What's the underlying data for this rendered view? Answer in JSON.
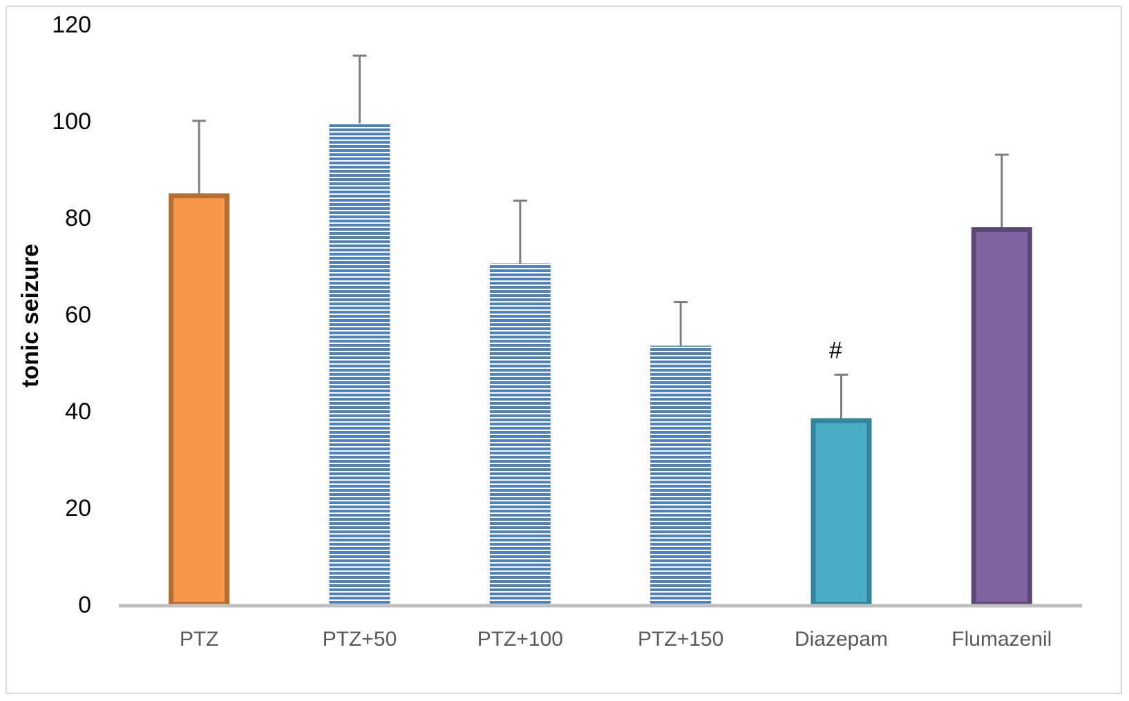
{
  "chart_data": {
    "type": "bar",
    "title": "",
    "xlabel": "",
    "ylabel": "tonic seizure",
    "ylim": [
      0,
      120
    ],
    "yticks": [
      0,
      20,
      40,
      60,
      80,
      100,
      120
    ],
    "categories": [
      "PTZ",
      "PTZ+50",
      "PTZ+100",
      "PTZ+150",
      "Diazepam",
      "Flumazenil"
    ],
    "values": [
      85,
      99.5,
      70.5,
      53.5,
      38.5,
      78
    ],
    "error": [
      15,
      14,
      13,
      9,
      9,
      15
    ],
    "annotations": [
      "",
      "",
      "",
      "",
      "#",
      ""
    ],
    "grid": false,
    "legend": "none",
    "bar_styles": [
      {
        "fill": "#f79646",
        "stroke": "#b66d31",
        "pattern": "solid"
      },
      {
        "fill": "#4f81bd",
        "stroke": "none",
        "pattern": "horizontal-lines"
      },
      {
        "fill": "#4f81bd",
        "stroke": "none",
        "pattern": "horizontal-lines"
      },
      {
        "fill": "#4f81bd",
        "stroke": "none",
        "pattern": "horizontal-lines"
      },
      {
        "fill": "#4bacc6",
        "stroke": "#31859c",
        "pattern": "solid"
      },
      {
        "fill": "#8064a2",
        "stroke": "#5c4776",
        "pattern": "solid"
      }
    ],
    "axis_color": "#bfbfbf",
    "errorbar_color": "#7f7f7f"
  }
}
